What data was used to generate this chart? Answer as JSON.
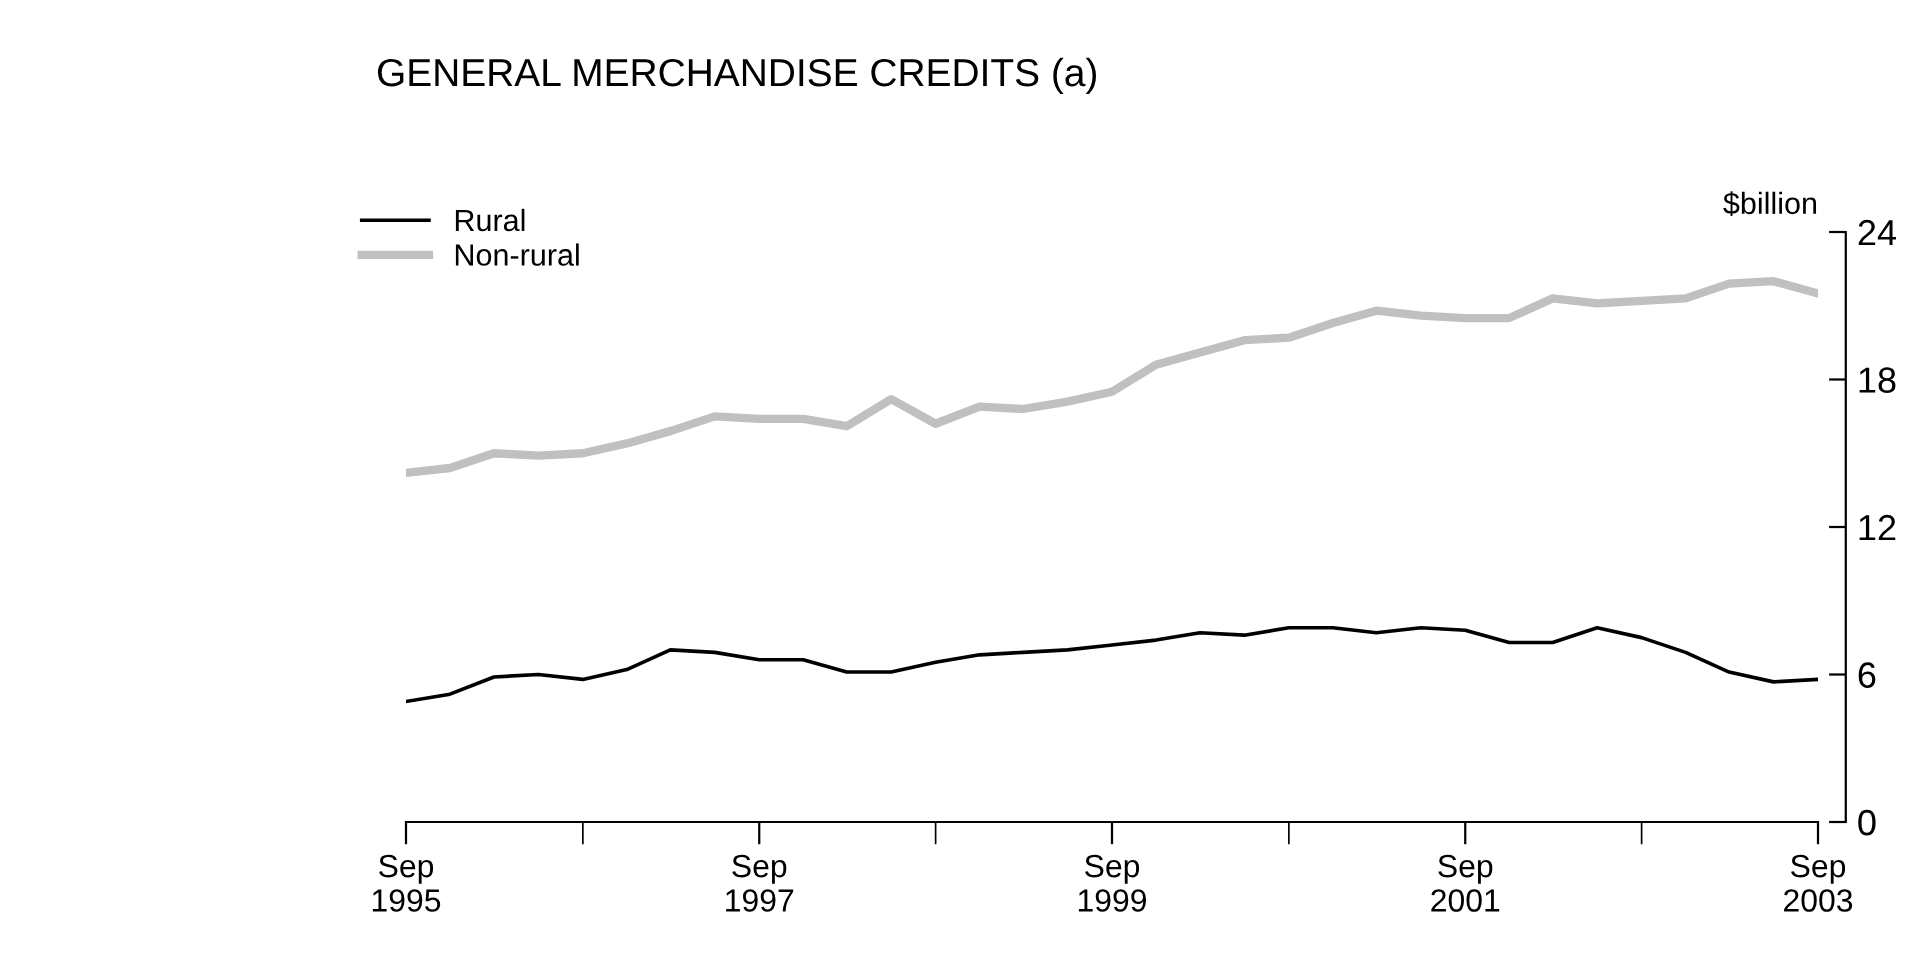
{
  "chart_data": {
    "type": "line",
    "title": "GENERAL MERCHANDISE CREDITS (a)",
    "ylabel": "$billion",
    "x": [
      "1995-09",
      "1995-12",
      "1996-03",
      "1996-06",
      "1996-09",
      "1996-12",
      "1997-03",
      "1997-06",
      "1997-09",
      "1997-12",
      "1998-03",
      "1998-06",
      "1998-09",
      "1998-12",
      "1999-03",
      "1999-06",
      "1999-09",
      "1999-12",
      "2000-03",
      "2000-06",
      "2000-09",
      "2000-12",
      "2001-03",
      "2001-06",
      "2001-09",
      "2001-12",
      "2002-03",
      "2002-06",
      "2002-09",
      "2002-12",
      "2003-03",
      "2003-06",
      "2003-09"
    ],
    "series": [
      {
        "name": "Rural",
        "color": "#000000",
        "values": [
          4.9,
          5.2,
          5.9,
          6.0,
          5.8,
          6.2,
          7.0,
          6.9,
          6.6,
          6.6,
          6.1,
          6.1,
          6.5,
          6.8,
          6.9,
          7.0,
          7.2,
          7.4,
          7.7,
          7.6,
          7.9,
          7.9,
          7.7,
          7.9,
          7.8,
          7.3,
          7.3,
          7.9,
          7.5,
          6.9,
          6.1,
          5.7,
          5.8
        ]
      },
      {
        "name": "Non-rural",
        "color": "#c0c0c0",
        "values": [
          14.2,
          14.4,
          15.0,
          14.9,
          15.0,
          15.4,
          15.9,
          16.5,
          16.4,
          16.4,
          16.1,
          17.2,
          16.2,
          16.9,
          16.8,
          17.1,
          17.5,
          18.6,
          19.1,
          19.6,
          19.7,
          20.3,
          20.8,
          20.6,
          20.5,
          20.5,
          21.3,
          21.1,
          21.2,
          21.3,
          21.9,
          22.0,
          21.5
        ]
      }
    ],
    "xlim": [
      "1995-09",
      "2003-09"
    ],
    "xticks": [
      {
        "value": "1995-09",
        "label": "Sep\n1995"
      },
      {
        "value": "1996-09",
        "label": null
      },
      {
        "value": "1997-09",
        "label": "Sep\n1997"
      },
      {
        "value": "1998-09",
        "label": null
      },
      {
        "value": "1999-09",
        "label": "Sep\n1999"
      },
      {
        "value": "2000-09",
        "label": null
      },
      {
        "value": "2001-09",
        "label": "Sep\n2001"
      },
      {
        "value": "2002-09",
        "label": null
      },
      {
        "value": "2003-09",
        "label": "Sep\n2003"
      }
    ],
    "ylim": [
      0,
      24
    ],
    "yticks": [
      0,
      6,
      12,
      18,
      24
    ],
    "grid": false,
    "legend": "top left",
    "marker": "none",
    "line_style": "solid"
  }
}
